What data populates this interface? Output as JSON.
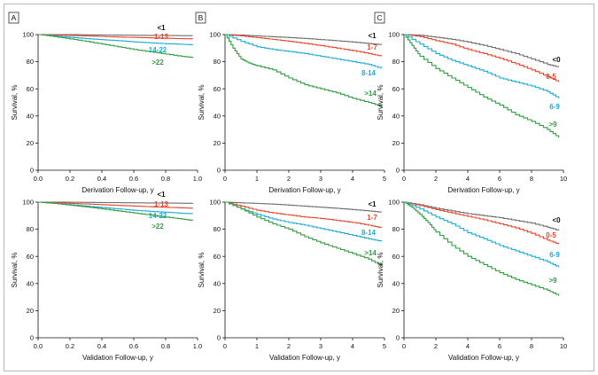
{
  "chart_data": [
    {
      "type": "line",
      "panel": "A",
      "row": "derivation",
      "xlabel": "Derivation Follow-up, y",
      "ylabel": "Survival, %",
      "xlim": [
        0,
        1.0
      ],
      "ylim": [
        0,
        100
      ],
      "xticks": [
        0,
        0.2,
        0.4,
        0.6,
        0.8,
        1.0
      ],
      "xtick_labels": [
        "0.0",
        "0.2",
        "0.4",
        "0.6",
        "0.8",
        "1.0"
      ],
      "yticks": [
        0,
        20,
        40,
        60,
        80,
        100
      ],
      "ytick_labels": [
        "0",
        "20",
        "40",
        "60",
        "80",
        "100"
      ],
      "grid": false,
      "series": [
        {
          "name": "<1",
          "color": "#6e6e6e",
          "x": [
            0,
            0.1,
            0.2,
            0.3,
            0.4,
            0.5,
            0.6,
            0.7,
            0.8,
            0.9,
            0.97
          ],
          "y": [
            100,
            100,
            100,
            99.8,
            99.7,
            99.6,
            99.5,
            99.4,
            99.3,
            99.2,
            99.2
          ]
        },
        {
          "name": "1-13",
          "color": "#e8452a",
          "x": [
            0,
            0.1,
            0.2,
            0.3,
            0.4,
            0.5,
            0.6,
            0.7,
            0.8,
            0.9,
            0.97
          ],
          "y": [
            100,
            99.7,
            99.4,
            99,
            98.6,
            98.2,
            97.9,
            97.6,
            97.3,
            97,
            96.8
          ]
        },
        {
          "name": "14-22",
          "color": "#1aabd9",
          "x": [
            0,
            0.1,
            0.2,
            0.3,
            0.4,
            0.5,
            0.6,
            0.7,
            0.8,
            0.9,
            0.97
          ],
          "y": [
            100,
            99,
            98,
            97,
            96.2,
            95.5,
            94.6,
            93.9,
            93.3,
            92.8,
            92.5
          ]
        },
        {
          "name": ">22",
          "color": "#2e9e3f",
          "x": [
            0,
            0.1,
            0.2,
            0.3,
            0.4,
            0.5,
            0.6,
            0.7,
            0.8,
            0.9,
            0.97
          ],
          "y": [
            100,
            98.5,
            96.8,
            95,
            93,
            91,
            89,
            87.3,
            85.6,
            84,
            83
          ]
        }
      ]
    },
    {
      "type": "line",
      "panel": "B",
      "row": "derivation",
      "xlabel": "Derivation Follow-up, y",
      "ylabel": "Survival, %",
      "xlim": [
        0,
        5
      ],
      "ylim": [
        0,
        100
      ],
      "xticks": [
        0,
        1,
        2,
        3,
        4,
        5
      ],
      "xtick_labels": [
        "0",
        "1",
        "2",
        "3",
        "4",
        "5"
      ],
      "yticks": [
        0,
        20,
        40,
        60,
        80,
        100
      ],
      "ytick_labels": [
        "0",
        "20",
        "40",
        "60",
        "80",
        "100"
      ],
      "grid": false,
      "series": [
        {
          "name": "<1",
          "color": "#6e6e6e",
          "x": [
            0,
            0.5,
            1,
            1.5,
            2,
            2.5,
            3,
            3.5,
            4,
            4.5,
            4.9
          ],
          "y": [
            100,
            99.6,
            99,
            98.4,
            97.8,
            97.1,
            96.3,
            95.4,
            94.5,
            93.4,
            92.5
          ]
        },
        {
          "name": "1-7",
          "color": "#e8452a",
          "x": [
            0,
            0.5,
            1,
            1.5,
            2,
            2.5,
            3,
            3.5,
            4,
            4.5,
            4.9
          ],
          "y": [
            100,
            99,
            97.8,
            96.4,
            95,
            93.5,
            91.8,
            90,
            88.2,
            86,
            84
          ]
        },
        {
          "name": "8-14",
          "color": "#1aabd9",
          "x": [
            0,
            0.5,
            1,
            1.5,
            2,
            2.5,
            3,
            3.5,
            4,
            4.5,
            4.9
          ],
          "y": [
            100,
            95,
            91,
            89,
            87.5,
            86,
            84,
            82,
            80,
            78,
            75
          ]
        },
        {
          "name": ">14",
          "color": "#2e9e3f",
          "x": [
            0,
            0.25,
            0.5,
            0.75,
            1,
            1.5,
            2,
            2.5,
            3,
            3.5,
            4,
            4.5,
            4.9
          ],
          "y": [
            100,
            90,
            82,
            79,
            77,
            74,
            68,
            63,
            60,
            57,
            53,
            50,
            47
          ]
        }
      ]
    },
    {
      "type": "line",
      "panel": "C",
      "row": "derivation",
      "xlabel": "Derivation Follow-up, y",
      "ylabel": "Survival, %",
      "xlim": [
        0,
        10
      ],
      "ylim": [
        0,
        100
      ],
      "xticks": [
        0,
        2,
        4,
        6,
        8,
        10
      ],
      "xtick_labels": [
        "0",
        "2",
        "4",
        "6",
        "8",
        "10"
      ],
      "yticks": [
        0,
        20,
        40,
        60,
        80,
        100
      ],
      "ytick_labels": [
        "0",
        "20",
        "40",
        "60",
        "80",
        "100"
      ],
      "grid": false,
      "series": [
        {
          "name": "<0",
          "color": "#6e6e6e",
          "x": [
            0,
            1,
            2,
            3,
            4,
            5,
            6,
            7,
            8,
            9,
            9.7
          ],
          "y": [
            100,
            99.5,
            98,
            96.5,
            94.5,
            92,
            89,
            86,
            82,
            78,
            76
          ]
        },
        {
          "name": "0-5",
          "color": "#e8452a",
          "x": [
            0,
            1,
            2,
            3,
            4,
            5,
            6,
            7,
            8,
            9,
            9.7
          ],
          "y": [
            100,
            98.5,
            95.5,
            93,
            89,
            86,
            82.5,
            78.5,
            74,
            69,
            65
          ]
        },
        {
          "name": "6-9",
          "color": "#1aabd9",
          "x": [
            0,
            1,
            2,
            3,
            4,
            5,
            6,
            7,
            8,
            9,
            9.7
          ],
          "y": [
            100,
            93,
            86,
            81,
            77,
            73,
            68,
            65,
            62,
            58,
            53
          ]
        },
        {
          "name": ">9",
          "color": "#2e9e3f",
          "x": [
            0,
            0.5,
            1,
            2,
            3,
            4,
            5,
            6,
            7,
            8,
            9,
            9.7
          ],
          "y": [
            100,
            92,
            84,
            75,
            68,
            61,
            54,
            48,
            41,
            36,
            30,
            24
          ]
        }
      ]
    },
    {
      "type": "line",
      "panel": "A",
      "row": "validation",
      "xlabel": "Validation Follow-up, y",
      "ylabel": "Survival, %",
      "xlim": [
        0,
        1.0
      ],
      "ylim": [
        0,
        100
      ],
      "xticks": [
        0,
        0.2,
        0.4,
        0.6,
        0.8,
        1.0
      ],
      "xtick_labels": [
        "0.0",
        "0.2",
        "0.4",
        "0.6",
        "0.8",
        "1.0"
      ],
      "yticks": [
        0,
        20,
        40,
        60,
        80,
        100
      ],
      "ytick_labels": [
        "0",
        "20",
        "40",
        "60",
        "80",
        "100"
      ],
      "grid": false,
      "series": [
        {
          "name": "<1",
          "color": "#6e6e6e",
          "x": [
            0,
            0.1,
            0.2,
            0.3,
            0.4,
            0.5,
            0.6,
            0.7,
            0.8,
            0.9,
            0.97
          ],
          "y": [
            100,
            100,
            99.9,
            99.8,
            99.7,
            99.6,
            99.5,
            99.4,
            99.3,
            99.2,
            99.1
          ]
        },
        {
          "name": "1-13",
          "color": "#e8452a",
          "x": [
            0,
            0.1,
            0.2,
            0.3,
            0.4,
            0.5,
            0.6,
            0.7,
            0.8,
            0.9,
            0.97
          ],
          "y": [
            100,
            99.6,
            99.1,
            98.6,
            98.1,
            97.6,
            97.1,
            96.6,
            96.2,
            95.8,
            95.5
          ]
        },
        {
          "name": "14-22",
          "color": "#1aabd9",
          "x": [
            0,
            0.1,
            0.2,
            0.3,
            0.4,
            0.5,
            0.6,
            0.7,
            0.8,
            0.9,
            0.97
          ],
          "y": [
            100,
            99,
            98,
            97,
            96,
            95,
            94,
            93.2,
            92.5,
            91.8,
            91.5
          ]
        },
        {
          "name": ">22",
          "color": "#2e9e3f",
          "x": [
            0,
            0.1,
            0.2,
            0.3,
            0.4,
            0.5,
            0.6,
            0.7,
            0.8,
            0.9,
            0.97
          ],
          "y": [
            100,
            99,
            97.8,
            96.5,
            95,
            93.5,
            92,
            90.5,
            89,
            87.5,
            86.5
          ]
        }
      ]
    },
    {
      "type": "line",
      "panel": "B",
      "row": "validation",
      "xlabel": "Validation Follow-up, y",
      "ylabel": "Survival, %",
      "xlim": [
        0,
        5
      ],
      "ylim": [
        0,
        100
      ],
      "xticks": [
        0,
        1,
        2,
        3,
        4,
        5
      ],
      "xtick_labels": [
        "0",
        "1",
        "2",
        "3",
        "4",
        "5"
      ],
      "yticks": [
        0,
        20,
        40,
        60,
        80,
        100
      ],
      "ytick_labels": [
        "0",
        "20",
        "40",
        "60",
        "80",
        "100"
      ],
      "grid": false,
      "series": [
        {
          "name": "<1",
          "color": "#6e6e6e",
          "x": [
            0,
            0.5,
            1,
            1.5,
            2,
            2.5,
            3,
            3.5,
            4,
            4.5,
            4.9
          ],
          "y": [
            100,
            99.5,
            99,
            98.5,
            97.8,
            97,
            96.2,
            95.4,
            94.5,
            93.5,
            92.5
          ]
        },
        {
          "name": "1-7",
          "color": "#e8452a",
          "x": [
            0,
            0.5,
            1,
            1.5,
            2,
            2.5,
            3,
            3.5,
            4,
            4.5,
            4.9
          ],
          "y": [
            100,
            97,
            94,
            92,
            90.5,
            89,
            88,
            86.5,
            85,
            83,
            81
          ]
        },
        {
          "name": "8-14",
          "color": "#1aabd9",
          "x": [
            0,
            0.5,
            1,
            1.5,
            2,
            2.5,
            3,
            3.5,
            4,
            4.5,
            4.9
          ],
          "y": [
            100,
            95,
            91,
            87.5,
            85,
            83,
            80.5,
            78,
            75.5,
            73,
            71
          ]
        },
        {
          "name": ">14",
          "color": "#2e9e3f",
          "x": [
            0,
            0.5,
            1,
            1.5,
            2,
            2.5,
            3,
            3.5,
            4,
            4.5,
            4.9
          ],
          "y": [
            100,
            95,
            89,
            84,
            80,
            74.5,
            70,
            66,
            62,
            58,
            53
          ]
        }
      ]
    },
    {
      "type": "line",
      "panel": "C",
      "row": "validation",
      "xlabel": "Validation Follow-up, y",
      "ylabel": "Survival, %",
      "xlim": [
        0,
        10
      ],
      "ylim": [
        0,
        100
      ],
      "xticks": [
        0,
        2,
        4,
        6,
        8,
        10
      ],
      "xtick_labels": [
        "0",
        "2",
        "4",
        "6",
        "8",
        "10"
      ],
      "yticks": [
        0,
        20,
        40,
        60,
        80,
        100
      ],
      "ytick_labels": [
        "0",
        "20",
        "40",
        "60",
        "80",
        "100"
      ],
      "grid": false,
      "series": [
        {
          "name": "<0",
          "color": "#6e6e6e",
          "x": [
            0,
            1,
            2,
            3,
            4,
            5,
            6,
            7,
            8,
            9,
            9.7
          ],
          "y": [
            100,
            98,
            95.5,
            93.5,
            91.5,
            90,
            88.5,
            86.5,
            84.5,
            81.5,
            79
          ]
        },
        {
          "name": "0-5",
          "color": "#e8452a",
          "x": [
            0,
            1,
            2,
            3,
            4,
            5,
            6,
            7,
            8,
            9,
            9.7
          ],
          "y": [
            100,
            97.5,
            94.5,
            92,
            89.5,
            87,
            84,
            81,
            77,
            72,
            69
          ]
        },
        {
          "name": "6-9",
          "color": "#1aabd9",
          "x": [
            0,
            1,
            2,
            3,
            4,
            5,
            6,
            7,
            8,
            9,
            9.7
          ],
          "y": [
            100,
            95,
            89,
            84,
            77.5,
            73,
            68,
            64,
            60,
            56,
            52
          ]
        },
        {
          "name": ">9",
          "color": "#2e9e3f",
          "x": [
            0,
            0.5,
            1,
            1.5,
            2,
            3,
            4,
            5,
            6,
            7,
            8,
            9,
            9.7
          ],
          "y": [
            100,
            96,
            91,
            85,
            78,
            68,
            60,
            54,
            48,
            43,
            39,
            35,
            31
          ]
        }
      ]
    }
  ]
}
